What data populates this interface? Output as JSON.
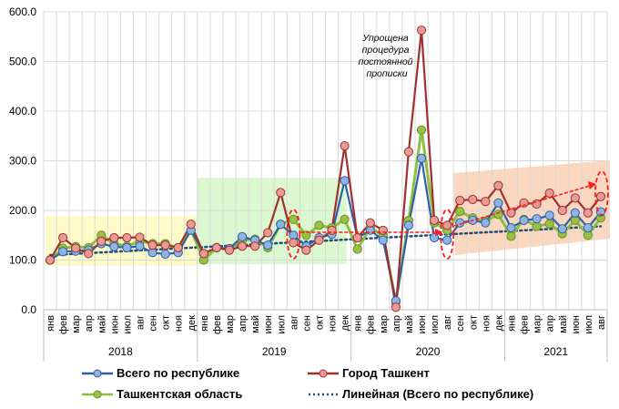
{
  "chart_data": {
    "type": "line",
    "title": "",
    "xlabel": "",
    "ylabel": "",
    "ylim": [
      0,
      600
    ],
    "yticks": [
      "0.0",
      "100.0",
      "200.0",
      "300.0",
      "400.0",
      "500.0",
      "600.0"
    ],
    "grid": true,
    "legend_position": "bottom",
    "months": [
      "янв",
      "фев",
      "мар",
      "апр",
      "май",
      "июн",
      "июл",
      "авг",
      "сен",
      "окт",
      "ноя",
      "дек",
      "янв",
      "фев",
      "мар",
      "апр",
      "май",
      "июн",
      "июл",
      "авг",
      "сен",
      "окт",
      "ноя",
      "дек",
      "янв",
      "фев",
      "мар",
      "апр",
      "май",
      "июн",
      "июл",
      "авг",
      "сен",
      "окт",
      "ноя",
      "дек",
      "янв",
      "фев",
      "мар",
      "апр",
      "май",
      "июн",
      "июл",
      "авг"
    ],
    "years": [
      "2018",
      "2019",
      "2020",
      "2021"
    ],
    "series": [
      {
        "name": "Всего по республике",
        "color": "#2e5fa8",
        "marker": "#8fb4e3",
        "values": [
          100,
          117,
          118,
          120,
          133,
          127,
          125,
          128,
          115,
          112,
          115,
          160,
          113,
          125,
          123,
          147,
          140,
          130,
          172,
          150,
          128,
          145,
          152,
          260,
          145,
          160,
          140,
          18,
          170,
          305,
          145,
          140,
          175,
          180,
          175,
          215,
          165,
          180,
          183,
          190,
          163,
          195,
          165,
          197
        ]
      },
      {
        "name": "Город Ташкент",
        "color": "#a0302e",
        "marker": "#e89a94",
        "values": [
          100,
          145,
          124,
          113,
          138,
          145,
          145,
          146,
          130,
          130,
          125,
          172,
          113,
          125,
          120,
          128,
          128,
          155,
          236,
          135,
          120,
          140,
          160,
          330,
          145,
          175,
          160,
          5,
          318,
          563,
          180,
          170,
          220,
          222,
          218,
          250,
          195,
          215,
          213,
          235,
          200,
          225,
          195,
          228
        ]
      },
      {
        "name": "Ташкентская область",
        "color": "#8cbf3f",
        "marker": "#9ac144",
        "values": [
          100,
          124,
          127,
          125,
          150,
          133,
          128,
          138,
          133,
          133,
          125,
          160,
          100,
          125,
          122,
          140,
          142,
          125,
          172,
          182,
          150,
          170,
          165,
          182,
          122,
          165,
          150,
          15,
          180,
          362,
          175,
          160,
          198,
          185,
          178,
          192,
          148,
          182,
          168,
          173,
          153,
          180,
          150,
          185
        ]
      },
      {
        "name": "Линейная (Всего по республике)",
        "color": "#1f4e79",
        "style": "dotted",
        "values": [
          110,
          168
        ]
      }
    ],
    "annotations": [
      "Упрощена процедура постоянной прописки"
    ]
  }
}
